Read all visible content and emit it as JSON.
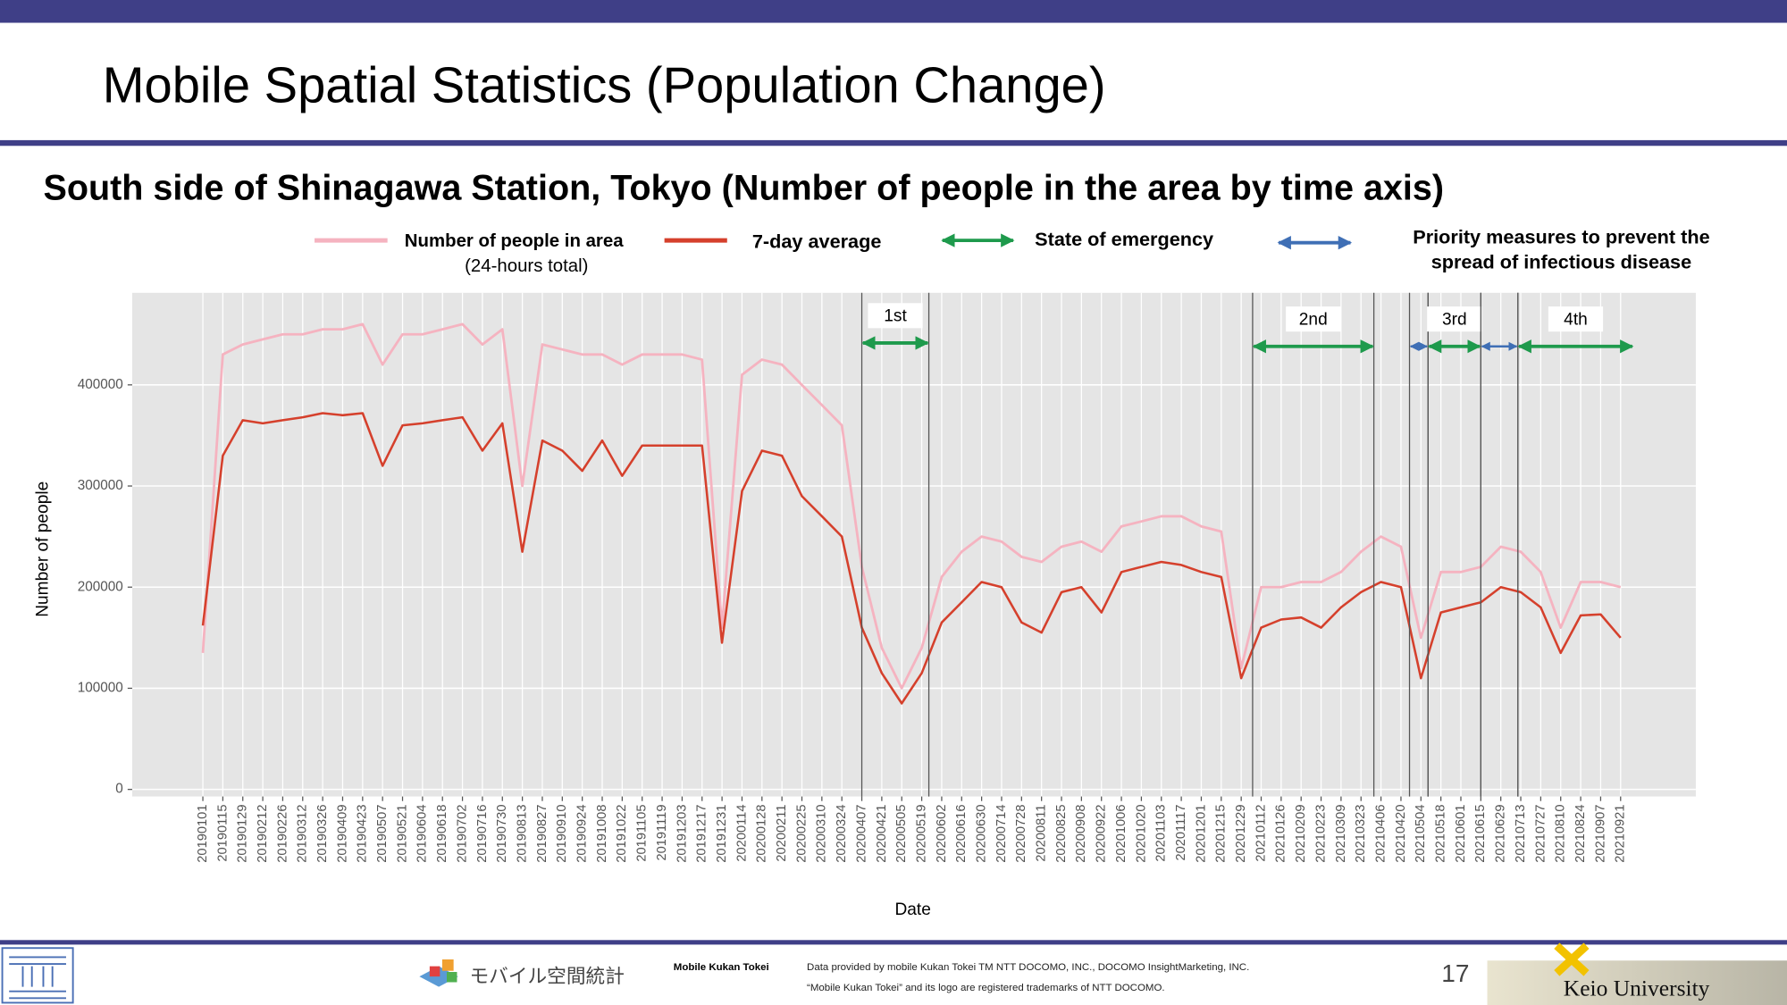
{
  "slide": {
    "title": "Mobile Spatial Statistics (Population Change)",
    "subtitle": "South side of Shinagawa Station, Tokyo (Number of people in the area by time axis)",
    "footer": {
      "logo_text": "モバイル空間統計",
      "brand": "Mobile Kukan Tokei",
      "credit": "Data provided by mobile Kukan Tokei TM NTT DOCOMO, INC., DOCOMO InsightMarketing, INC.",
      "trademark": "“Mobile Kukan Tokei” and its logo are registered trademarks of NTT DOCOMO.",
      "page_number": "17",
      "university": "Keio University"
    }
  },
  "chart_data": {
    "type": "line",
    "x_label": "Date",
    "y_label": "Number of people",
    "categories": [
      "20190101",
      "20190115",
      "20190129",
      "20190212",
      "20190226",
      "20190312",
      "20190326",
      "20190409",
      "20190423",
      "20190507",
      "20190521",
      "20190604",
      "20190618",
      "20190702",
      "20190716",
      "20190730",
      "20190813",
      "20190827",
      "20190910",
      "20190924",
      "20191008",
      "20191022",
      "20191105",
      "20191119",
      "20191203",
      "20191217",
      "20191231",
      "20200114",
      "20200128",
      "20200211",
      "20200225",
      "20200310",
      "20200324",
      "20200407",
      "20200421",
      "20200505",
      "20200519",
      "20200602",
      "20200616",
      "20200630",
      "20200714",
      "20200728",
      "20200811",
      "20200825",
      "20200908",
      "20200922",
      "20201006",
      "20201020",
      "20201103",
      "20201117",
      "20201201",
      "20201215",
      "20201229",
      "20210112",
      "20210126",
      "20210209",
      "20210223",
      "20210309",
      "20210323",
      "20210406",
      "20210420",
      "20210504",
      "20210518",
      "20210601",
      "20210615",
      "20210629",
      "20210713",
      "20210727",
      "20210810",
      "20210824",
      "20210907",
      "20210921"
    ],
    "series": [
      {
        "name": "Number of people in area",
        "name_note": "(24-hours total)",
        "color": "#f5b3c0",
        "values": [
          135000,
          430000,
          440000,
          445000,
          450000,
          450000,
          455000,
          455000,
          460000,
          420000,
          450000,
          450000,
          455000,
          460000,
          440000,
          455000,
          300000,
          440000,
          435000,
          430000,
          430000,
          420000,
          430000,
          430000,
          430000,
          425000,
          160000,
          410000,
          425000,
          420000,
          400000,
          380000,
          360000,
          220000,
          140000,
          100000,
          140000,
          210000,
          235000,
          250000,
          245000,
          230000,
          225000,
          240000,
          245000,
          235000,
          260000,
          265000,
          270000,
          270000,
          260000,
          255000,
          120000,
          200000,
          200000,
          205000,
          205000,
          215000,
          235000,
          250000,
          240000,
          150000,
          215000,
          215000,
          220000,
          240000,
          235000,
          215000,
          160000,
          205000,
          205000,
          200000
        ]
      },
      {
        "name": "7-day average",
        "color": "#d5402c",
        "values": [
          162000,
          330000,
          365000,
          362000,
          365000,
          368000,
          372000,
          370000,
          372000,
          320000,
          360000,
          362000,
          365000,
          368000,
          335000,
          362000,
          235000,
          345000,
          335000,
          315000,
          345000,
          310000,
          340000,
          340000,
          340000,
          340000,
          145000,
          295000,
          335000,
          330000,
          290000,
          270000,
          250000,
          160000,
          115000,
          85000,
          115000,
          165000,
          185000,
          205000,
          200000,
          165000,
          155000,
          195000,
          200000,
          175000,
          215000,
          220000,
          225000,
          222000,
          215000,
          210000,
          110000,
          160000,
          168000,
          170000,
          160000,
          180000,
          195000,
          205000,
          200000,
          110000,
          175000,
          180000,
          185000,
          200000,
          195000,
          180000,
          135000,
          172000,
          173000,
          150000
        ]
      }
    ],
    "ylim": [
      -7000,
      491000
    ],
    "yticks": [
      0,
      100000,
      200000,
      300000,
      400000
    ],
    "grid": true,
    "periods": [
      {
        "kind": "emergency",
        "label": "1st",
        "start": "20200407",
        "end": "20200524"
      },
      {
        "kind": "emergency",
        "label": "2nd",
        "start": "20210106",
        "end": "20210401"
      },
      {
        "kind": "priority",
        "start": "20210426",
        "end": "20210509"
      },
      {
        "kind": "emergency",
        "label": "3rd",
        "start": "20210509",
        "end": "20210615"
      },
      {
        "kind": "priority",
        "start": "20210615",
        "end": "20210711"
      },
      {
        "kind": "emergency",
        "label": "4th",
        "start": "20210711",
        "end": "20210930"
      }
    ],
    "period_legend": {
      "emergency": {
        "name": "State of emergency",
        "color": "#1e9a4c"
      },
      "priority": {
        "name_lines": [
          "Priority measures to prevent the",
          "spread of infectious disease"
        ],
        "color": "#3f6fb5"
      }
    }
  }
}
